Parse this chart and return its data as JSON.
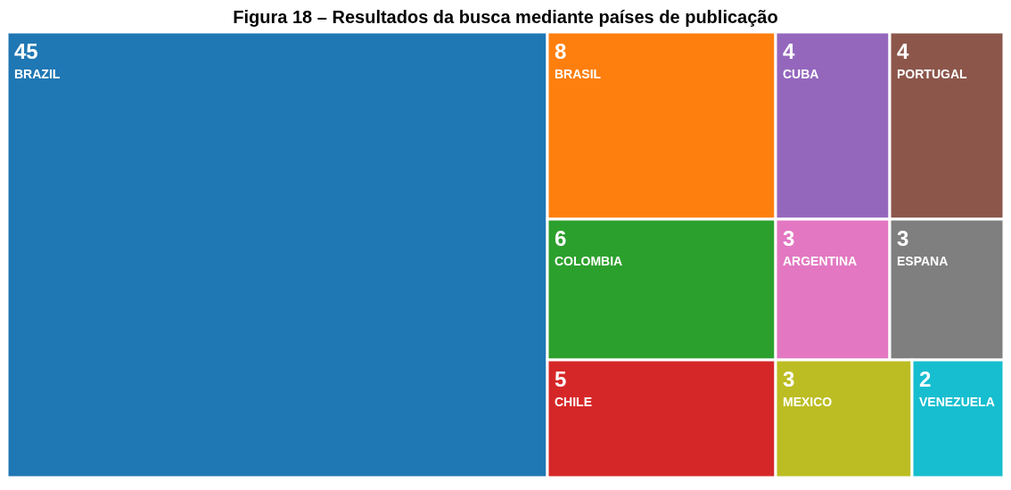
{
  "chart_data": {
    "type": "other",
    "title": "Figura 18 – Resultados da busca mediante países de publicação",
    "categories": [
      "BRAZIL",
      "BRASIL",
      "COLOMBIA",
      "CHILE",
      "CUBA",
      "PORTUGAL",
      "ARGENTINA",
      "ESPANA",
      "MEXICO",
      "VENEZUELA"
    ],
    "values": [
      45,
      8,
      6,
      5,
      4,
      4,
      3,
      3,
      3,
      2
    ],
    "colors": [
      "#1f77b4",
      "#ff7f0e",
      "#2ca02c",
      "#d62728",
      "#9467bd",
      "#8c564b",
      "#e377c2",
      "#7f7f7f",
      "#bcbd22",
      "#17becf"
    ],
    "data_labels": true
  }
}
